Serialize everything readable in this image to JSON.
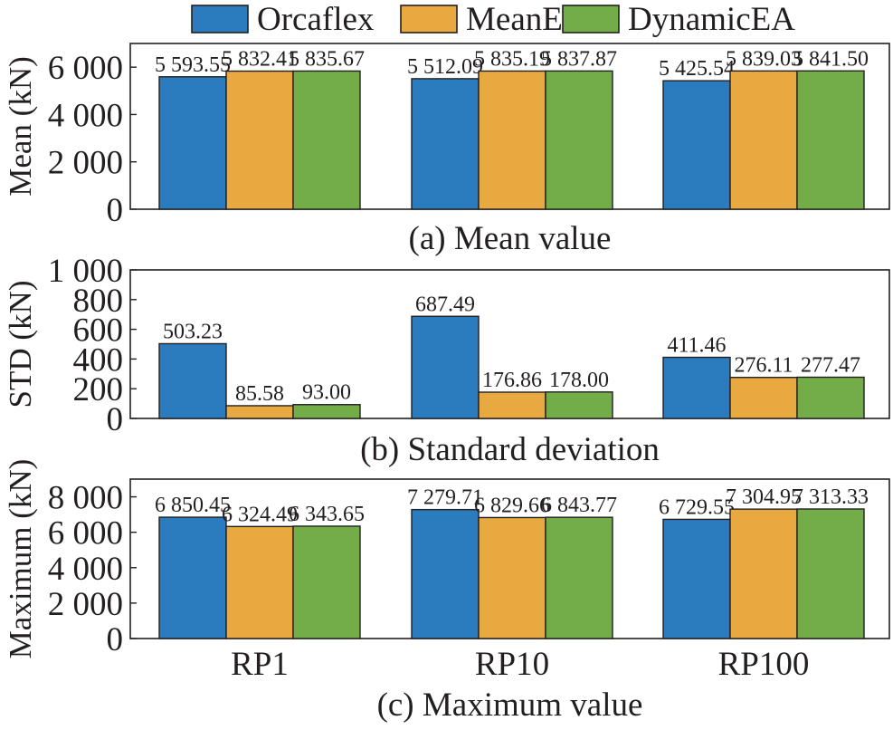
{
  "legend": [
    {
      "label": "Orcaflex",
      "color": "#2b7bbf"
    },
    {
      "label": "MeanEA",
      "color": "#e8a940"
    },
    {
      "label": "DynamicEA",
      "color": "#72ad48"
    }
  ],
  "chart_data": [
    {
      "type": "bar",
      "caption": "(a) Mean value",
      "ylabel": "Mean (kN)",
      "ylim": [
        0,
        7000
      ],
      "yticks": [
        0,
        2000,
        4000,
        6000
      ],
      "ytick_labels": [
        "0",
        "2 000",
        "4 000",
        "6 000"
      ],
      "categories": [
        "RP1",
        "RP10",
        "RP100"
      ],
      "show_xtick_labels": false,
      "series": [
        {
          "name": "Orcaflex",
          "values": [
            5593.55,
            5512.09,
            5425.54
          ],
          "labels": [
            "5 593.55",
            "5 512.09",
            "5 425.54"
          ]
        },
        {
          "name": "MeanEA",
          "values": [
            5832.41,
            5835.19,
            5839.03
          ],
          "labels": [
            "5 832.41",
            "5 835.19",
            "5 839.03"
          ]
        },
        {
          "name": "DynamicEA",
          "values": [
            5835.67,
            5837.87,
            5841.5
          ],
          "labels": [
            "5 835.67",
            "5 837.87",
            "5 841.50"
          ]
        }
      ]
    },
    {
      "type": "bar",
      "caption": "(b) Standard deviation",
      "ylabel": "STD (kN)",
      "ylim": [
        0,
        1000
      ],
      "yticks": [
        0,
        200,
        400,
        600,
        800,
        1000
      ],
      "ytick_labels": [
        "0",
        "200",
        "400",
        "600",
        "800",
        "1 000"
      ],
      "categories": [
        "RP1",
        "RP10",
        "RP100"
      ],
      "show_xtick_labels": false,
      "series": [
        {
          "name": "Orcaflex",
          "values": [
            503.23,
            687.49,
            411.46
          ],
          "labels": [
            "503.23",
            "687.49",
            "411.46"
          ]
        },
        {
          "name": "MeanEA",
          "values": [
            85.58,
            176.86,
            276.11
          ],
          "labels": [
            "85.58",
            "176.86",
            "276.11"
          ]
        },
        {
          "name": "DynamicEA",
          "values": [
            93.0,
            178.0,
            277.47
          ],
          "labels": [
            "93.00",
            "178.00",
            "277.47"
          ]
        }
      ]
    },
    {
      "type": "bar",
      "caption": "(c) Maximum value",
      "ylabel": "Maximum (kN)",
      "ylim": [
        0,
        9000
      ],
      "yticks": [
        0,
        2000,
        4000,
        6000,
        8000
      ],
      "ytick_labels": [
        "0",
        "2 000",
        "4 000",
        "6 000",
        "8 000"
      ],
      "categories": [
        "RP1",
        "RP10",
        "RP100"
      ],
      "show_xtick_labels": true,
      "series": [
        {
          "name": "Orcaflex",
          "values": [
            6850.45,
            7279.71,
            6729.55
          ],
          "labels": [
            "6 850.45",
            "7 279.71",
            "6 729.55"
          ]
        },
        {
          "name": "MeanEA",
          "values": [
            6324.49,
            6829.66,
            7304.95
          ],
          "labels": [
            "6 324.49",
            "6 829.66",
            "7 304.95"
          ]
        },
        {
          "name": "DynamicEA",
          "values": [
            6343.65,
            6843.77,
            7313.33
          ],
          "labels": [
            "6 343.65",
            "6 843.77",
            "7 313.33"
          ]
        }
      ]
    }
  ]
}
